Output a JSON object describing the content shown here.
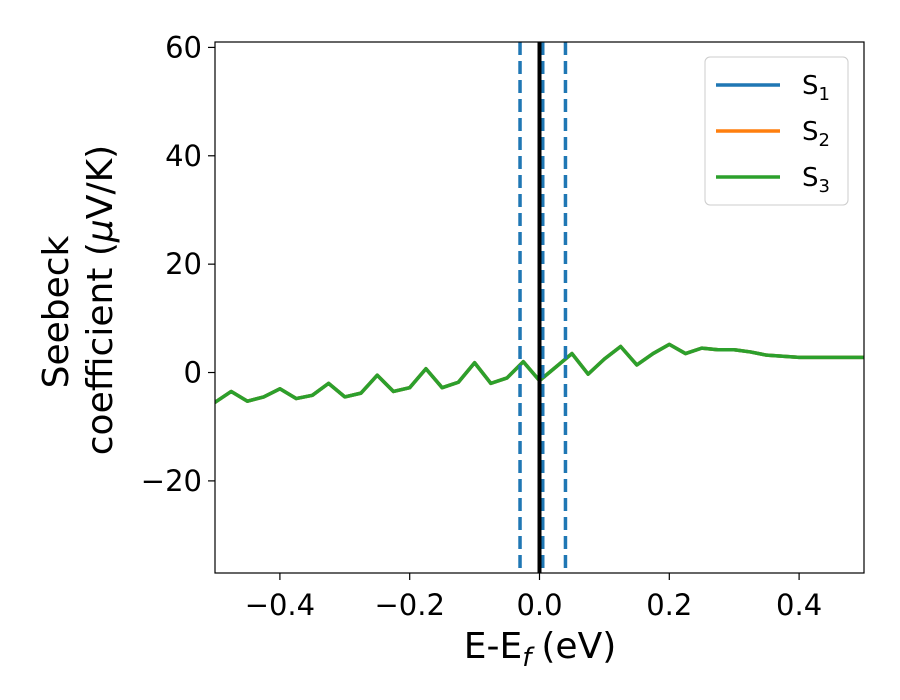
{
  "chart_data": {
    "type": "line",
    "title": "",
    "xlabel_main": "E-E",
    "xlabel_sub": "f",
    "xlabel_unit": "(eV)",
    "ylabel_line1": "Seebeck",
    "ylabel_line2_pre": "coefficient  (",
    "ylabel_mu": "μ",
    "ylabel_line2_post": "V/K)",
    "xlim": [
      -0.5,
      0.5
    ],
    "ylim": [
      -37,
      61
    ],
    "xticks": [
      -0.4,
      -0.2,
      0.0,
      0.2,
      0.4
    ],
    "xtick_labels": [
      "−0.4",
      "−0.2",
      "0.0",
      "0.2",
      "0.4"
    ],
    "yticks": [
      -20,
      0,
      20,
      40,
      60
    ],
    "ytick_labels": [
      "−20",
      "0",
      "20",
      "40",
      "60"
    ],
    "grid": false,
    "legend_position": "top-right",
    "vertical_lines": [
      {
        "x": -0.03,
        "style": "dashed",
        "color": "#1f77b4"
      },
      {
        "x": 0.005,
        "style": "dashed",
        "color": "#1f77b4"
      },
      {
        "x": 0.04,
        "style": "dashed",
        "color": "#1f77b4"
      },
      {
        "x": 0.0,
        "style": "solid",
        "color": "#000000"
      }
    ],
    "series": [
      {
        "name": "S",
        "sub": "1",
        "color": "#1f77b4",
        "x": [
          -0.5,
          -0.475,
          -0.45,
          -0.425,
          -0.4,
          -0.375,
          -0.35,
          -0.325,
          -0.3,
          -0.275,
          -0.25,
          -0.225,
          -0.2,
          -0.175,
          -0.15,
          -0.125,
          -0.1,
          -0.075,
          -0.05,
          -0.025,
          0.0,
          0.025,
          0.05,
          0.075,
          0.1,
          0.125,
          0.15,
          0.175,
          0.2,
          0.225,
          0.25,
          0.275,
          0.3,
          0.325,
          0.35,
          0.375,
          0.4,
          0.425,
          0.45,
          0.475,
          0.5
        ],
        "y": [
          -5.5,
          -3.5,
          -5.3,
          -4.5,
          -3.0,
          -4.8,
          -4.2,
          -2.0,
          -4.5,
          -3.8,
          -0.5,
          -3.5,
          -2.8,
          0.7,
          -2.8,
          -1.8,
          1.8,
          -2.0,
          -1.0,
          2.0,
          -1.5,
          1.0,
          3.5,
          -0.3,
          2.5,
          4.8,
          1.4,
          3.5,
          5.2,
          3.5,
          4.5,
          4.2,
          4.2,
          3.8,
          3.2,
          3.0,
          2.8,
          2.8,
          2.8,
          2.8,
          2.8
        ]
      },
      {
        "name": "S",
        "sub": "2",
        "color": "#ff7f0e",
        "x": [
          -0.5,
          -0.475,
          -0.45,
          -0.425,
          -0.4,
          -0.375,
          -0.35,
          -0.325,
          -0.3,
          -0.275,
          -0.25,
          -0.225,
          -0.2,
          -0.175,
          -0.15,
          -0.125,
          -0.1,
          -0.075,
          -0.05,
          -0.025,
          0.0,
          0.025,
          0.05,
          0.075,
          0.1,
          0.125,
          0.15,
          0.175,
          0.2,
          0.225,
          0.25,
          0.275,
          0.3,
          0.325,
          0.35,
          0.375,
          0.4,
          0.425,
          0.45,
          0.475,
          0.5
        ],
        "y": [
          -5.5,
          -3.5,
          -5.3,
          -4.5,
          -3.0,
          -4.8,
          -4.2,
          -2.0,
          -4.5,
          -3.8,
          -0.5,
          -3.5,
          -2.8,
          0.7,
          -2.8,
          -1.8,
          1.8,
          -2.0,
          -1.0,
          2.0,
          -1.5,
          1.0,
          3.5,
          -0.3,
          2.5,
          4.8,
          1.4,
          3.5,
          5.2,
          3.5,
          4.5,
          4.2,
          4.2,
          3.8,
          3.2,
          3.0,
          2.8,
          2.8,
          2.8,
          2.8,
          2.8
        ]
      },
      {
        "name": "S",
        "sub": "3",
        "color": "#2ca02c",
        "x": [
          -0.5,
          -0.475,
          -0.45,
          -0.425,
          -0.4,
          -0.375,
          -0.35,
          -0.325,
          -0.3,
          -0.275,
          -0.25,
          -0.225,
          -0.2,
          -0.175,
          -0.15,
          -0.125,
          -0.1,
          -0.075,
          -0.05,
          -0.025,
          0.0,
          0.025,
          0.05,
          0.075,
          0.1,
          0.125,
          0.15,
          0.175,
          0.2,
          0.225,
          0.25,
          0.275,
          0.3,
          0.325,
          0.35,
          0.375,
          0.4,
          0.425,
          0.45,
          0.475,
          0.5
        ],
        "y": [
          -5.5,
          -3.5,
          -5.3,
          -4.5,
          -3.0,
          -4.8,
          -4.2,
          -2.0,
          -4.5,
          -3.8,
          -0.5,
          -3.5,
          -2.8,
          0.7,
          -2.8,
          -1.8,
          1.8,
          -2.0,
          -1.0,
          2.0,
          -1.5,
          1.0,
          3.5,
          -0.3,
          2.5,
          4.8,
          1.4,
          3.5,
          5.2,
          3.5,
          4.5,
          4.2,
          4.2,
          3.8,
          3.2,
          3.0,
          2.8,
          2.8,
          2.8,
          2.8,
          2.8
        ]
      }
    ]
  }
}
